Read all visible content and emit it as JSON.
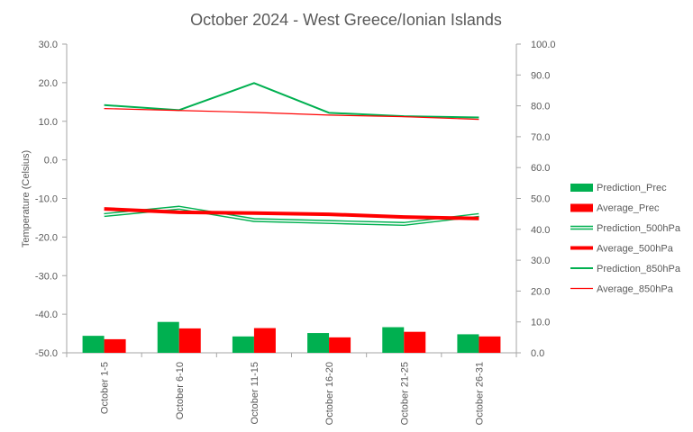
{
  "chart_data": {
    "type": "bar",
    "title": "October 2024 - West Greece/Ionian Islands",
    "ylabel": "Temperature  (Celsius)",
    "y2label": "",
    "ylim": [
      -50,
      30
    ],
    "y2lim": [
      0,
      100
    ],
    "grid": false,
    "legend_position": "right",
    "categories": [
      "October 1-5",
      "October 6-10",
      "October 11-15",
      "October 16-20",
      "October 21-25",
      "October 26-31"
    ],
    "y_ticks": [
      "30.0",
      "20.0",
      "10.0",
      "0.0",
      "-10.0",
      "-20.0",
      "-30.0",
      "-40.0",
      "-50.0"
    ],
    "y2_ticks": [
      "100.0",
      "90.0",
      "80.0",
      "70.0",
      "60.0",
      "50.0",
      "40.0",
      "30.0",
      "20.0",
      "10.0",
      "0.0"
    ],
    "series": [
      {
        "name": "Prediction_Prec",
        "kind": "bar",
        "axis": "right",
        "color": "#00b050",
        "values": [
          5.5,
          10.0,
          5.3,
          6.4,
          8.3,
          6.0
        ]
      },
      {
        "name": "Average_Prec",
        "kind": "bar",
        "axis": "right",
        "color": "#ff0000",
        "values": [
          4.4,
          7.9,
          8.0,
          5.0,
          6.8,
          5.3
        ]
      },
      {
        "name": "Prediction_500hPa",
        "kind": "line",
        "style": "double",
        "axis": "left",
        "color": "#00b050",
        "values": [
          -14.3,
          -12.4,
          -15.6,
          -16.1,
          -16.6,
          -14.3
        ]
      },
      {
        "name": "Average_500hPa",
        "kind": "line",
        "style": "thick",
        "axis": "left",
        "color": "#ff0000",
        "values": [
          -12.7,
          -13.6,
          -13.8,
          -14.1,
          -14.8,
          -15.2
        ]
      },
      {
        "name": "Prediction_850hPa",
        "kind": "line",
        "style": "normal",
        "axis": "left",
        "color": "#00b050",
        "values": [
          14.2,
          12.9,
          19.9,
          12.2,
          11.3,
          11.0
        ]
      },
      {
        "name": "Average_850hPa",
        "kind": "line",
        "style": "thin",
        "axis": "left",
        "color": "#ff0000",
        "values": [
          13.3,
          12.8,
          12.3,
          11.6,
          11.2,
          10.5
        ]
      }
    ]
  }
}
